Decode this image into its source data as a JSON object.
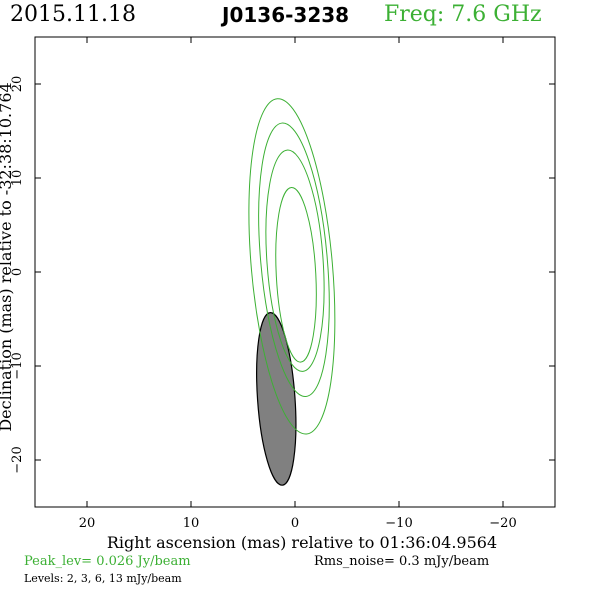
{
  "header": {
    "date": "2015.11.18",
    "source": "J0136-3238",
    "frequency": "Freq: 7.6 GHz"
  },
  "footer": {
    "peak": "Peak_lev=  0.026 Jy/beam",
    "rms": "Rms_noise=   0.3 mJy/beam",
    "levels": "Levels:   2,   3,   6,   13 mJy/beam"
  },
  "colors": {
    "contour": "#3cb034",
    "beam_fill": "#808080",
    "axis": "#000000"
  },
  "chart_data": {
    "type": "contour",
    "xlabel": "Right ascension (mas) relative to 01:36:04.9564",
    "ylabel": "Declination (mas) relative to -32:38:10.764",
    "xlim": [
      25,
      -25
    ],
    "ylim": [
      -25,
      25
    ],
    "x_ticks": [
      20,
      10,
      0,
      -10,
      -20
    ],
    "y_ticks": [
      20,
      10,
      0,
      -10,
      -20
    ],
    "x_tick_labels": [
      "20",
      "10",
      "0",
      "−10",
      "−20"
    ],
    "y_tick_labels": [
      "20",
      "10",
      "0",
      "−10",
      "−20"
    ],
    "contour_levels_mJy": [
      2,
      3,
      6,
      13
    ],
    "contours": [
      {
        "level": 2,
        "center": [
          0.3,
          0.6
        ],
        "semi_major": 17.9,
        "semi_minor": 3.9,
        "pa_deg": -5
      },
      {
        "level": 3,
        "center": [
          0.1,
          1.3
        ],
        "semi_major": 14.6,
        "semi_minor": 3.2,
        "pa_deg": -5
      },
      {
        "level": 6,
        "center": [
          0.0,
          1.2
        ],
        "semi_major": 11.8,
        "semi_minor": 2.7,
        "pa_deg": -4
      },
      {
        "level": 13,
        "center": [
          -0.1,
          -0.3
        ],
        "semi_major": 9.3,
        "semi_minor": 1.9,
        "pa_deg": -3
      }
    ],
    "beam": {
      "center": [
        1.8,
        -13.5
      ],
      "semi_major": 9.2,
      "semi_minor": 1.8,
      "pa_deg": -4
    }
  }
}
